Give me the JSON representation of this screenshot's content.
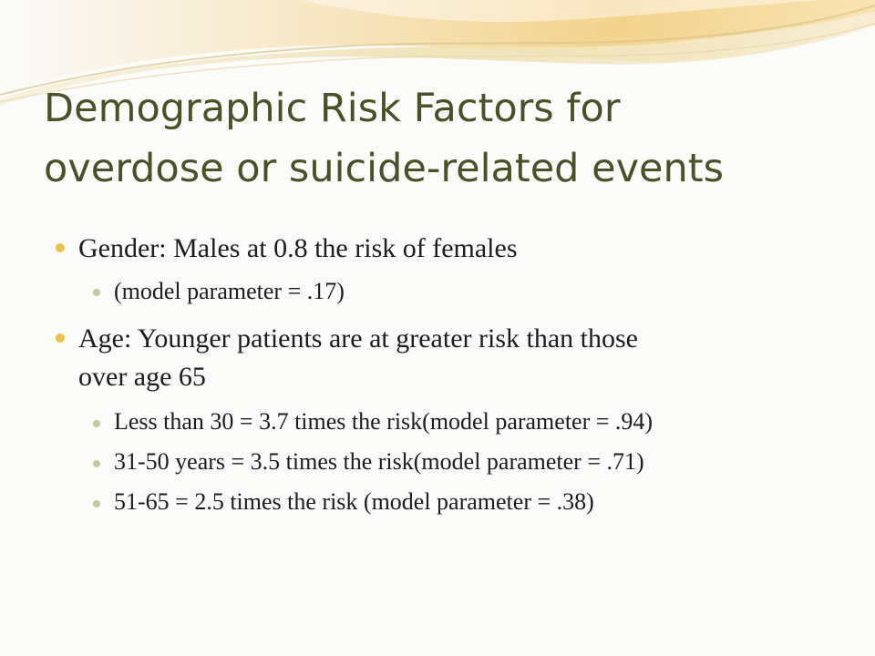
{
  "slide": {
    "title_lines": [
      "Demographic Risk Factors for",
      "overdose or suicide-related events"
    ],
    "bullets": [
      {
        "text": "Gender:  Males at 0.8 the risk of females",
        "sub": [
          "(model parameter = .17)"
        ]
      },
      {
        "text_lines": [
          "Age:  Younger patients are at greater risk than those",
          "over age 65"
        ],
        "sub": [
          "Less than 30 = 3.7 times the risk(model parameter = .94)",
          "31-50 years = 3.5 times the risk(model parameter = .71)",
          "51-65 = 2.5 times the risk (model parameter = .38)"
        ]
      }
    ]
  },
  "theme": {
    "title_color": "#4a5127",
    "bullet_color_primary": "#f2bf43",
    "bullet_color_secondary": "#c8c8a0",
    "wave_colors": [
      "#f6d79b",
      "#efe1b2",
      "#d6cb9a"
    ]
  }
}
